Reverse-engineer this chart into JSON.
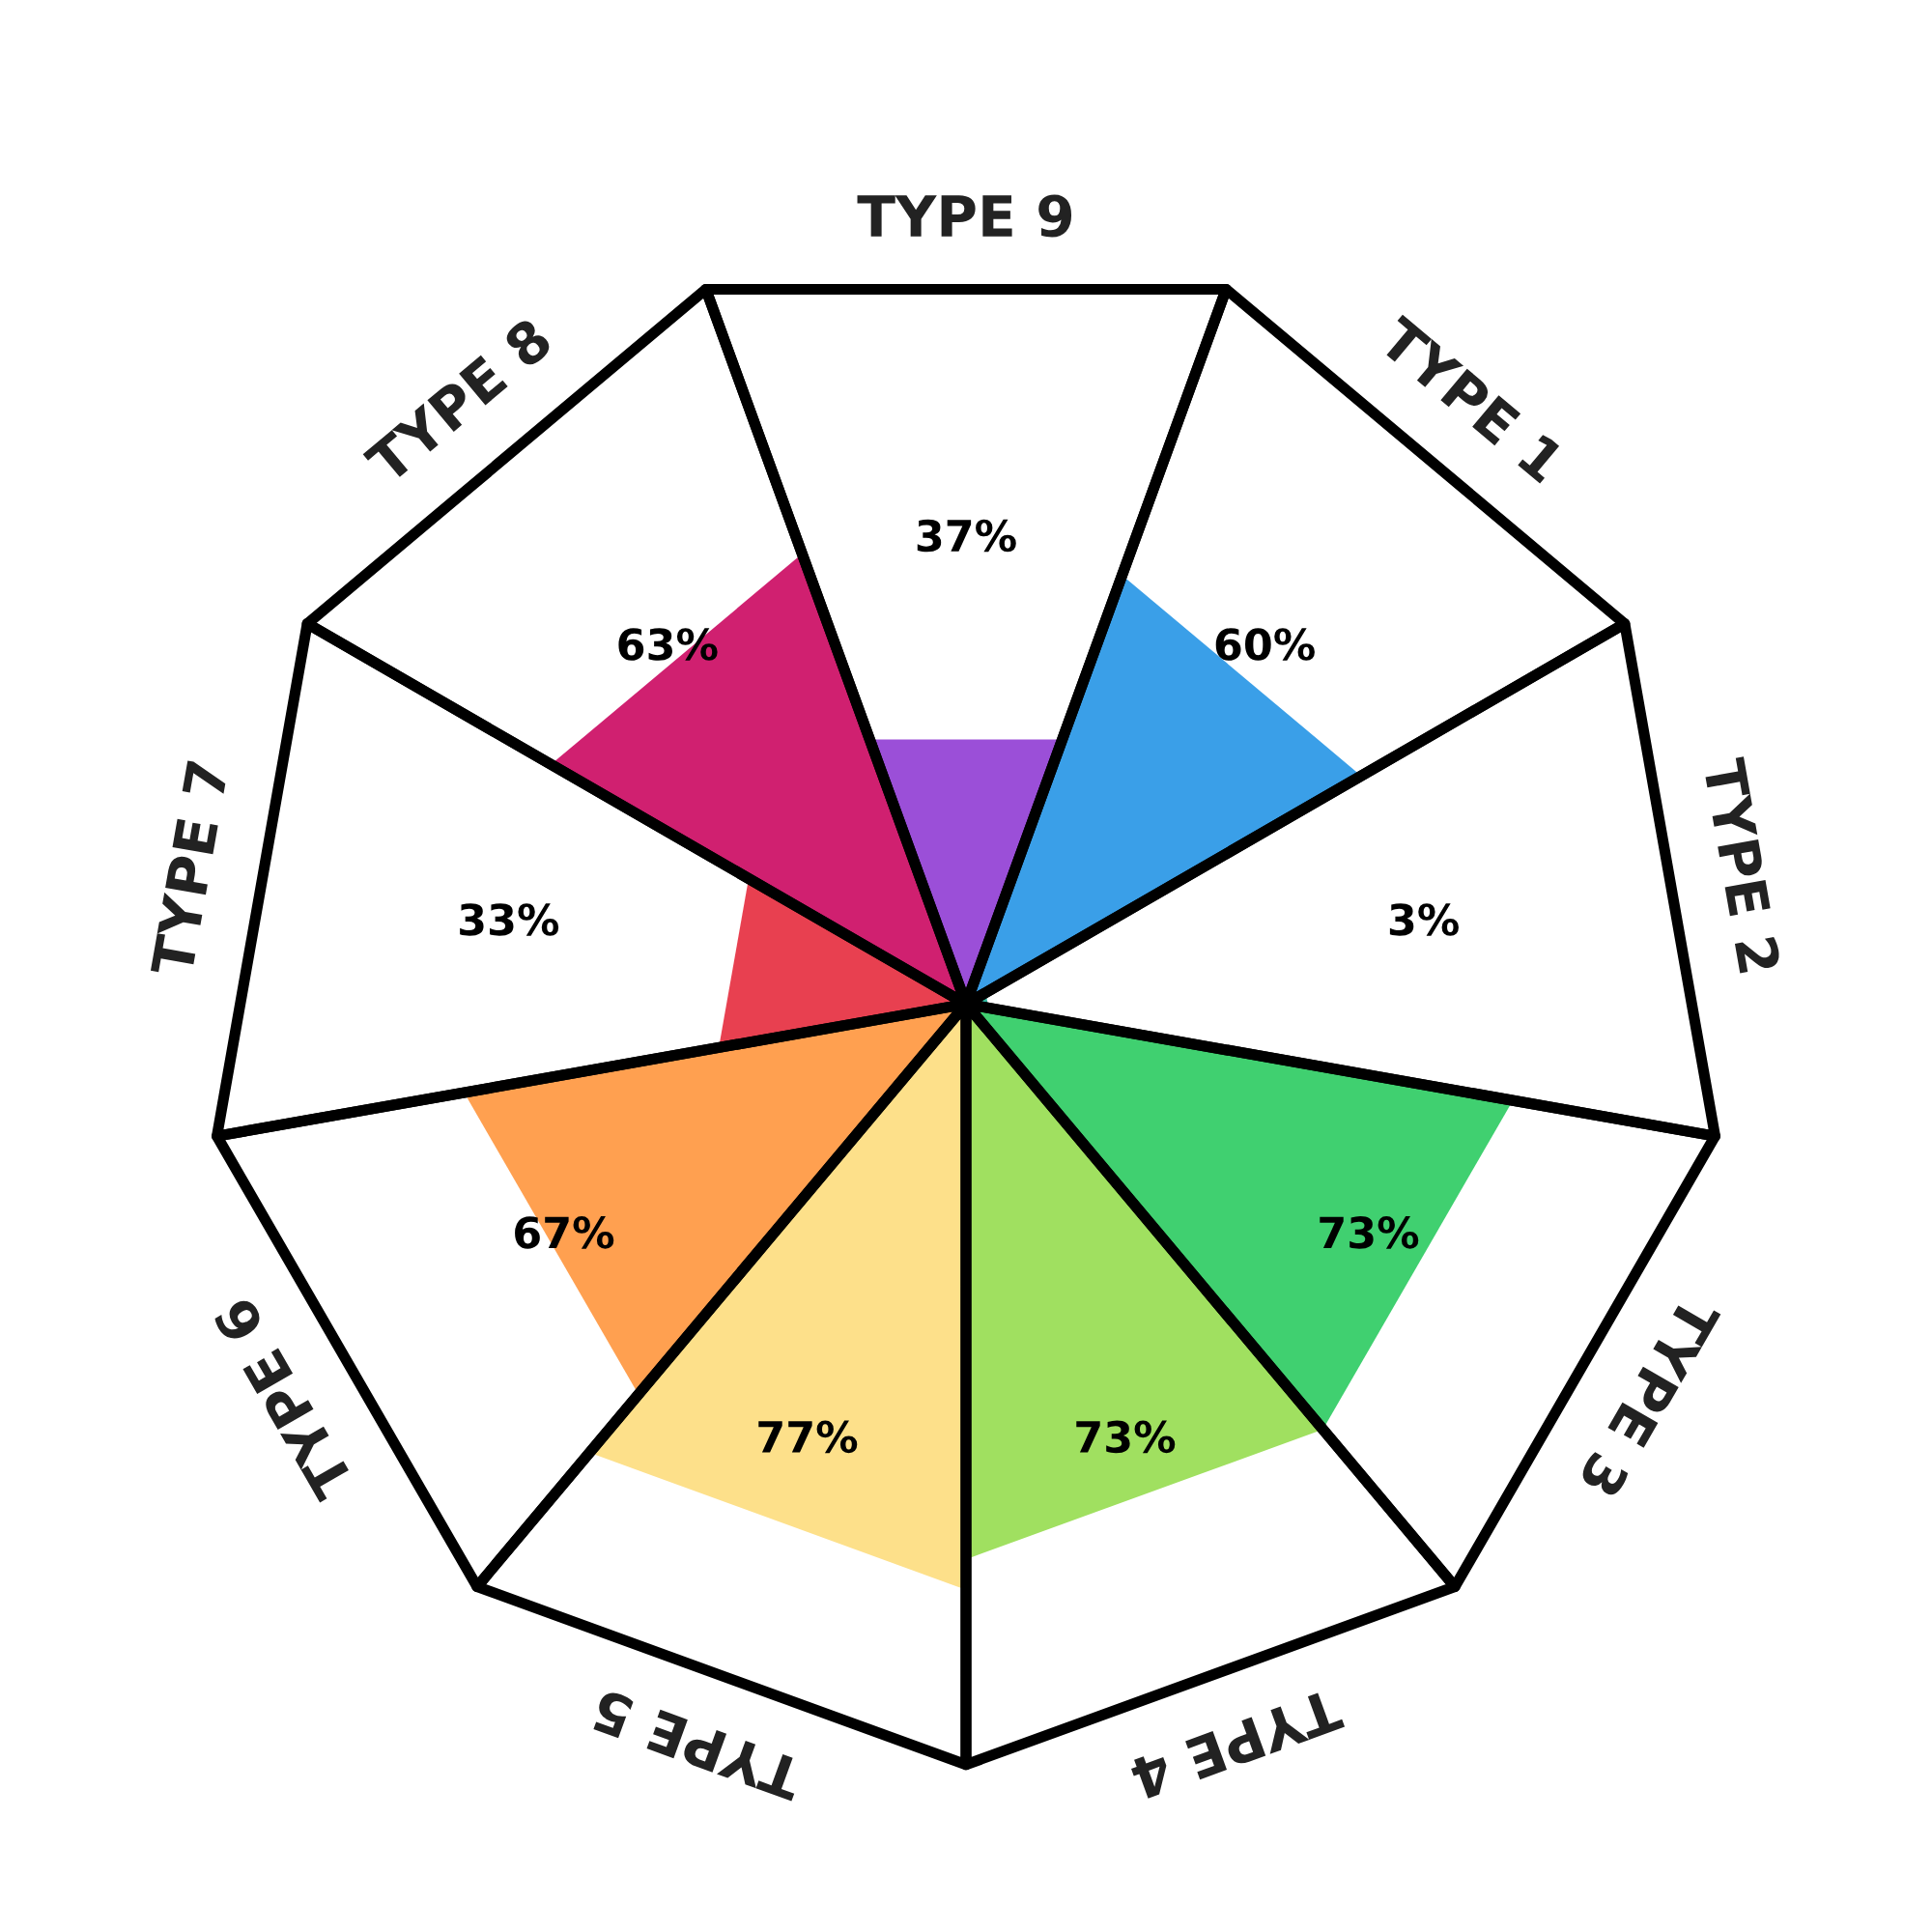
{
  "chart_data": {
    "type": "other",
    "categories": [
      "TYPE 9",
      "TYPE 1",
      "TYPE 2",
      "TYPE 3",
      "TYPE 4",
      "TYPE 5",
      "TYPE 6",
      "TYPE 7",
      "TYPE 8"
    ],
    "values": [
      37,
      60,
      3,
      73,
      73,
      77,
      67,
      33,
      63
    ],
    "value_labels": [
      "37%",
      "60%",
      "3%",
      "73%",
      "73%",
      "77%",
      "67%",
      "33%",
      "63%"
    ],
    "colors": [
      "#9b4fd8",
      "#3a9fe8",
      "#2fb8a0",
      "#40d070",
      "#a0e060",
      "#fde08a",
      "#ffa050",
      "#e84050",
      "#d02070"
    ]
  }
}
